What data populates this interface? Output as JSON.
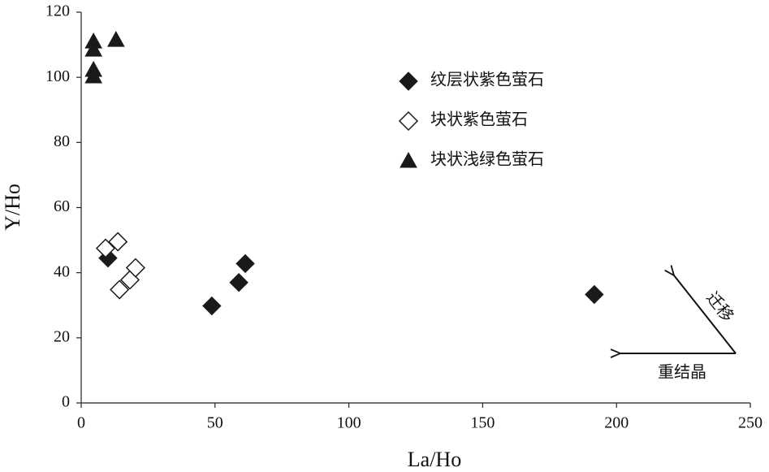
{
  "chart_data": {
    "type": "scatter",
    "x_label": "La/Ho",
    "y_label": "Y/Ho",
    "xlim": [
      0,
      250
    ],
    "xticks": [
      0,
      50,
      100,
      150,
      200,
      250
    ],
    "ylim": [
      0,
      120
    ],
    "yticks": [
      0,
      20,
      40,
      60,
      80,
      100,
      120
    ],
    "legend": "top-right",
    "series": [
      {
        "name": "纹层状紫色萤石",
        "color": "#1a1a1a",
        "marker": "diamond-filled",
        "x": [
          10,
          48.8,
          58.9,
          61.3,
          191.7
        ],
        "values": [
          44.5,
          29.8,
          37,
          42.8,
          33.3
        ]
      },
      {
        "name": "块状紫色萤石",
        "color": "#1a1a1a",
        "marker": "diamond-open",
        "x": [
          9.1,
          13.7,
          14.3,
          18.2,
          20.3
        ],
        "values": [
          47.5,
          49.5,
          34.8,
          37.8,
          41.5
        ]
      },
      {
        "name": "块状浅绿色萤石",
        "color": "#1a1a1a",
        "marker": "triangle",
        "x": [
          4.6,
          4.6,
          4.6,
          4.6,
          13
        ],
        "values": [
          111,
          108.5,
          102.3,
          100.3,
          111.5
        ]
      }
    ],
    "annotations": [
      "迁移",
      "重结晶"
    ]
  }
}
